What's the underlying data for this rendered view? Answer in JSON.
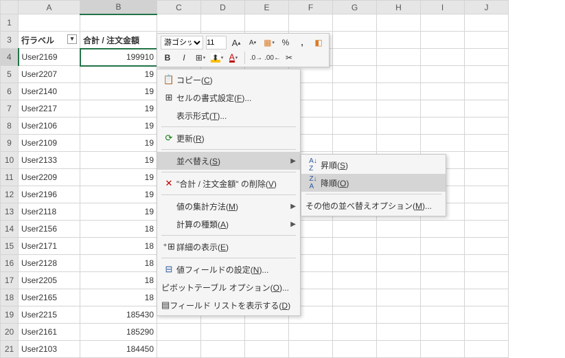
{
  "columns": [
    "A",
    "B",
    "C",
    "D",
    "E",
    "F",
    "G",
    "H",
    "I",
    "J"
  ],
  "rows_numbers": [
    1,
    3,
    4,
    5,
    6,
    7,
    8,
    9,
    10,
    11,
    12,
    13,
    14,
    15,
    16,
    17,
    18,
    19,
    20,
    21
  ],
  "active_col_idx": 1,
  "active_row_idx": 2,
  "pivot_header": {
    "row_label": "行ラベル",
    "value_label": "合計 / 注文金額"
  },
  "data_rows": [
    {
      "label": "User2169",
      "value": "199910"
    },
    {
      "label": "User2207",
      "value": "19"
    },
    {
      "label": "User2140",
      "value": "19"
    },
    {
      "label": "User2217",
      "value": "19"
    },
    {
      "label": "User2106",
      "value": "19"
    },
    {
      "label": "User2109",
      "value": "19"
    },
    {
      "label": "User2133",
      "value": "19"
    },
    {
      "label": "User2209",
      "value": "19"
    },
    {
      "label": "User2196",
      "value": "19"
    },
    {
      "label": "User2118",
      "value": "19"
    },
    {
      "label": "User2156",
      "value": "18"
    },
    {
      "label": "User2171",
      "value": "18"
    },
    {
      "label": "User2128",
      "value": "18"
    },
    {
      "label": "User2205",
      "value": "18"
    },
    {
      "label": "User2165",
      "value": "18"
    },
    {
      "label": "User2215",
      "value": "185430"
    },
    {
      "label": "User2161",
      "value": "185290"
    },
    {
      "label": "User2103",
      "value": "184450"
    }
  ],
  "minitoolbar": {
    "font_name": "游ゴシック",
    "font_size": "11",
    "inc_font": "A",
    "dec_font": "A",
    "bold": "B",
    "italic": "I"
  },
  "context_menu": {
    "copy": "コピー(<u>C</u>)",
    "format_cells": "セルの書式設定(<u>F</u>)...",
    "number_format": "表示形式(<u>T</u>)...",
    "refresh": "更新(<u>R</u>)",
    "sort": "並べ替え(<u>S</u>)",
    "remove": "\"合計 / 注文金額\" の削除(<u>V</u>)",
    "summarize": "値の集計方法(<u>M</u>)",
    "show_as": "計算の種類(<u>A</u>)",
    "show_details": "詳細の表示(<u>E</u>)",
    "value_field": "値フィールドの設定(<u>N</u>)...",
    "pivot_options": "ピボットテーブル オプション(<u>O</u>)...",
    "field_list": "フィールド リストを表示する(<u>D</u>)"
  },
  "sort_submenu": {
    "asc": "昇順(<u>S</u>)",
    "desc": "降順(<u>O</u>)",
    "more": "その他の並べ替えオプション(<u>M</u>)..."
  }
}
